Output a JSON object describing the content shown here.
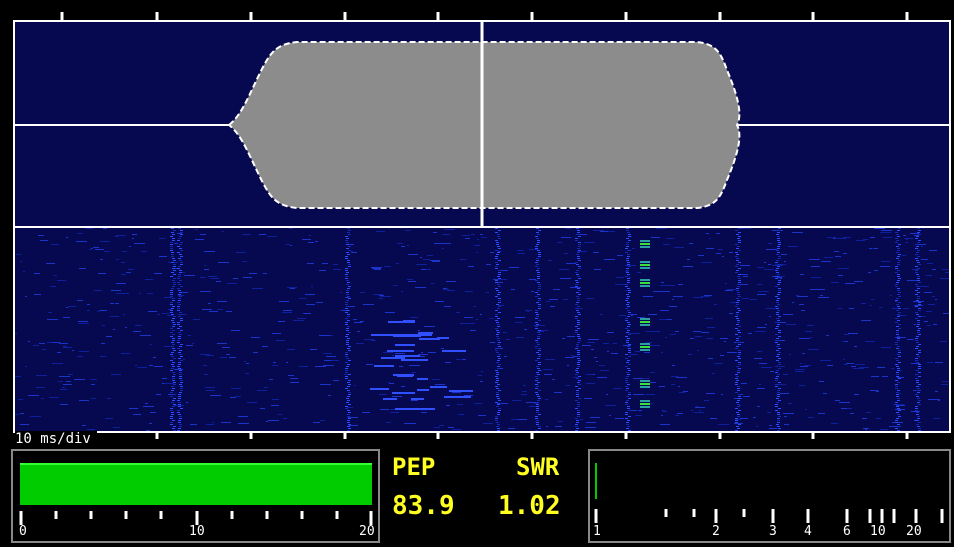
{
  "scope": {
    "timebase_label": "10 ms/div"
  },
  "readout": {
    "pep_label": "PEP",
    "swr_label": "SWR",
    "pep_value": "83.9",
    "swr_value": "1.02"
  },
  "power_meter": {
    "scale_labels": [
      "0",
      "10",
      "20"
    ],
    "level_fraction": 0.96,
    "bar_color": "#00cc00"
  },
  "swr_meter": {
    "scale_labels": [
      "1",
      "2",
      "3",
      "4",
      "6",
      "10",
      "20"
    ],
    "level_fraction": 0.0
  },
  "colors": {
    "background": "#000000",
    "scope_bg": "#06094f",
    "envelope": "#888888",
    "readout_text": "#ffff22"
  }
}
